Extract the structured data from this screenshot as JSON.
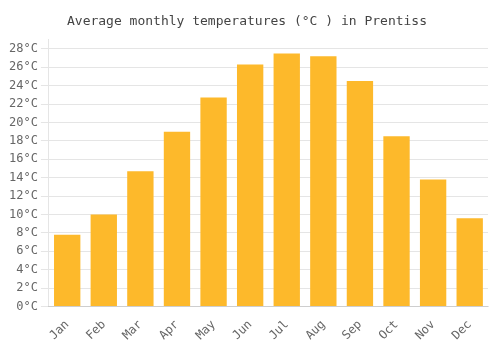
{
  "chart_data": {
    "type": "bar",
    "title": "Average monthly temperatures (°C ) in Prentiss",
    "categories": [
      "Jan",
      "Feb",
      "Mar",
      "Apr",
      "May",
      "Jun",
      "Jul",
      "Aug",
      "Sep",
      "Oct",
      "Nov",
      "Dec"
    ],
    "values": [
      7.8,
      10.0,
      14.7,
      19.0,
      22.7,
      26.3,
      27.5,
      27.2,
      24.5,
      18.5,
      13.8,
      9.6
    ],
    "color": "#FDB92B",
    "ylim": [
      0,
      29
    ],
    "yticks": [
      {
        "value": 0,
        "label": "0°C"
      },
      {
        "value": 2,
        "label": "2°C"
      },
      {
        "value": 4,
        "label": "4°C"
      },
      {
        "value": 6,
        "label": "6°C"
      },
      {
        "value": 8,
        "label": "8°C"
      },
      {
        "value": 10,
        "label": "10°C"
      },
      {
        "value": 12,
        "label": "12°C"
      },
      {
        "value": 14,
        "label": "14°C"
      },
      {
        "value": 16,
        "label": "16°C"
      },
      {
        "value": 18,
        "label": "18°C"
      },
      {
        "value": 20,
        "label": "20°C"
      },
      {
        "value": 22,
        "label": "22°C"
      },
      {
        "value": 24,
        "label": "24°C"
      },
      {
        "value": 26,
        "label": "26°C"
      },
      {
        "value": 28,
        "label": "28°C"
      }
    ],
    "grid": true
  }
}
